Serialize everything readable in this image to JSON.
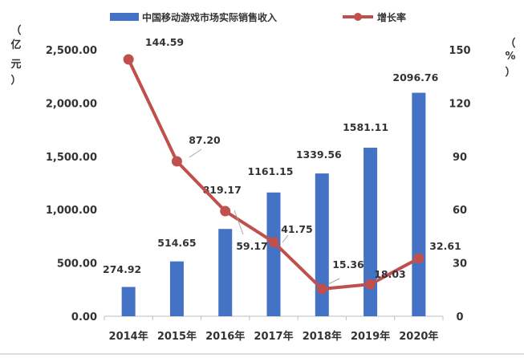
{
  "chart_data": {
    "type": "bar",
    "categories": [
      "2014年",
      "2015年",
      "2016年",
      "2017年",
      "2018年",
      "2019年",
      "2020年"
    ],
    "series": [
      {
        "name": "中国移动游戏市场实际销售收入",
        "type": "bar",
        "axis": "left",
        "values": [
          274.92,
          514.65,
          819.17,
          1161.15,
          1339.56,
          1581.11,
          2096.76
        ],
        "labels": [
          "274.92",
          "514.65",
          "819.17",
          "1161.15",
          "1339.56",
          "1581.11",
          "2096.76"
        ]
      },
      {
        "name": "增长率",
        "type": "line",
        "axis": "right",
        "values": [
          144.59,
          87.2,
          59.17,
          41.75,
          15.36,
          18.03,
          32.61
        ],
        "labels": [
          "144.59",
          "87.20",
          "59.17",
          "41.75",
          "15.36",
          "18.03",
          "32.61"
        ]
      }
    ],
    "left_axis": {
      "ylim": [
        0,
        2500
      ],
      "ticks": [
        "0.00",
        "500.00",
        "1,000.00",
        "1,500.00",
        "2,000.00",
        "2,500.00"
      ],
      "unit_chars": [
        "（",
        "亿",
        "元",
        "）"
      ]
    },
    "right_axis": {
      "ylim": [
        0,
        150
      ],
      "ticks": [
        "0",
        "30",
        "60",
        "90",
        "120",
        "150"
      ],
      "unit_chars": [
        "（",
        "%",
        "）"
      ]
    },
    "legend_position": "top",
    "grid": false,
    "colors": {
      "bar": "#4472C4",
      "line": "#C0504D",
      "axis": "#BFBFBF",
      "text": "#333333"
    }
  }
}
